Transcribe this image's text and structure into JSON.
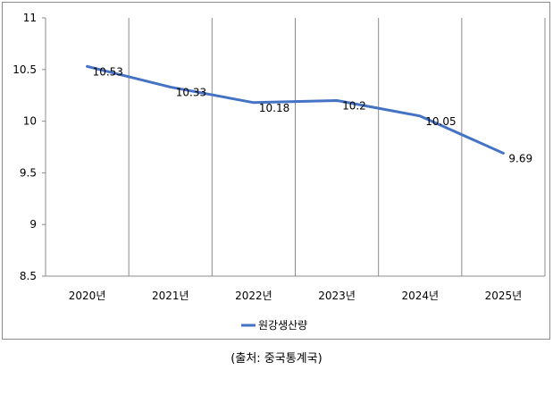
{
  "chart_data": {
    "type": "line",
    "categories": [
      "2020년",
      "2021년",
      "2022년",
      "2023년",
      "2024년",
      "2025년"
    ],
    "series": [
      {
        "name": "원강생산량",
        "values": [
          10.53,
          10.33,
          10.18,
          10.2,
          10.05,
          9.69
        ],
        "labels": [
          "10.53",
          "10.33",
          "10.18",
          "10.2",
          "10.05",
          "9.69"
        ],
        "color": "#4472C4"
      }
    ],
    "ylim": [
      8.5,
      11
    ],
    "yticks": [
      "11",
      "10.5",
      "10",
      "9.5",
      "9",
      "8.5"
    ],
    "ytick_values": [
      11,
      10.5,
      10,
      9.5,
      9,
      8.5
    ],
    "grid": "vertical",
    "legend": "bottom"
  },
  "source": "(출처:  중국통계국)"
}
